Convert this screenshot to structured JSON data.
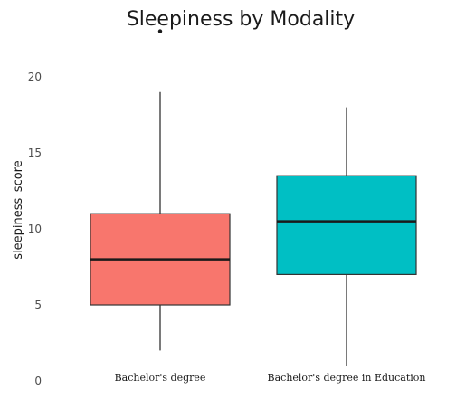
{
  "chart_data": {
    "type": "boxplot",
    "title": "Sleepiness by Modality",
    "xlabel": "",
    "ylabel": "sleepiness_score",
    "ylim": [
      0,
      22.5
    ],
    "yticks": [
      "0",
      "5",
      "10",
      "15",
      "20"
    ],
    "grid": false,
    "legend": "none",
    "categories": [
      "Bachelor's degree",
      "Bachelor's degree in Education"
    ],
    "boxes": [
      {
        "category": "Bachelor's degree",
        "min": 2,
        "q1": 5,
        "median": 8,
        "q3": 11,
        "max": 19,
        "outliers": [
          23
        ],
        "color": "#f8766d"
      },
      {
        "category": "Bachelor's degree in Education",
        "min": 1,
        "q1": 7,
        "median": 10.5,
        "q3": 13.5,
        "max": 18,
        "outliers": [],
        "color": "#00bfc4"
      }
    ]
  }
}
